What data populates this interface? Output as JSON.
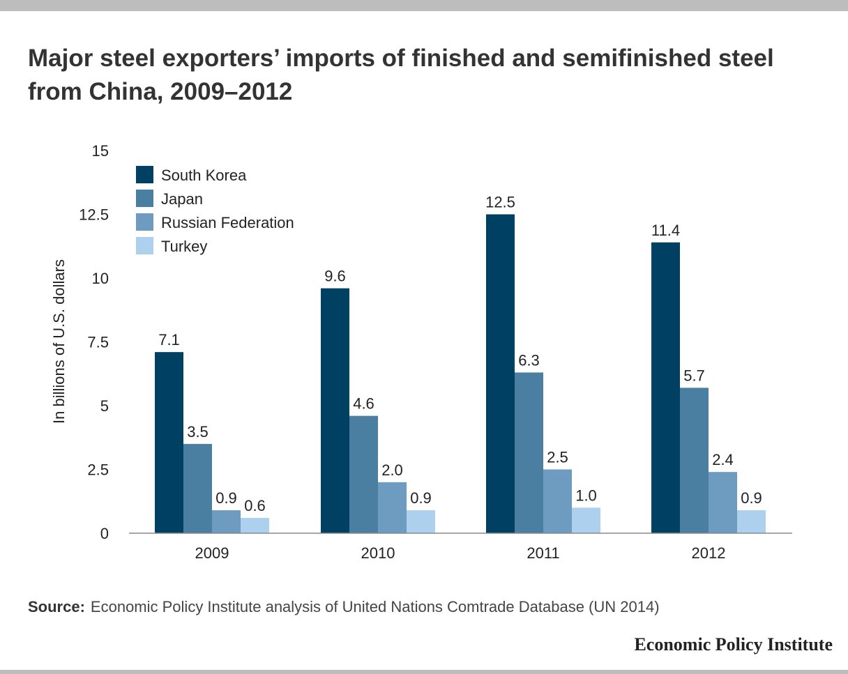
{
  "title": "Major steel exporters’ imports of finished and semifinished steel from China, 2009–2012",
  "source": {
    "label": "Source:",
    "text": "Economic Policy Institute analysis of United Nations Comtrade Database (UN 2014)"
  },
  "brand": "Economic Policy Institute",
  "colors": {
    "south_korea": "#004163",
    "japan": "#4a7fa1",
    "russian_federation": "#6d9cc0",
    "turkey": "#aed0ef",
    "axis": "#888888",
    "frame": "#bdbdbd"
  },
  "chart_data": {
    "type": "bar",
    "title": "Major steel exporters’ imports of finished and semifinished steel from China, 2009–2012",
    "xlabel": "",
    "ylabel": "In billions of U.S. dollars",
    "ylim": [
      0,
      15
    ],
    "yticks": [
      "0",
      "2.5",
      "5",
      "7.5",
      "10",
      "12.5",
      "15"
    ],
    "categories": [
      "2009",
      "2010",
      "2011",
      "2012"
    ],
    "legend_position": "top-left",
    "grid": false,
    "series": [
      {
        "name": "South Korea",
        "color": "#004163",
        "values": [
          7.1,
          9.6,
          12.5,
          11.4
        ],
        "labels": [
          "7.1",
          "9.6",
          "12.5",
          "11.4"
        ]
      },
      {
        "name": "Japan",
        "color": "#4a7fa1",
        "values": [
          3.5,
          4.6,
          6.3,
          5.7
        ],
        "labels": [
          "3.5",
          "4.6",
          "6.3",
          "5.7"
        ]
      },
      {
        "name": "Russian Federation",
        "color": "#6d9cc0",
        "values": [
          0.9,
          2.0,
          2.5,
          2.4
        ],
        "labels": [
          "0.9",
          "2.0",
          "2.5",
          "2.4"
        ]
      },
      {
        "name": "Turkey",
        "color": "#aed0ef",
        "values": [
          0.6,
          0.9,
          1.0,
          0.9
        ],
        "labels": [
          "0.6",
          "0.9",
          "1.0",
          "0.9"
        ]
      }
    ]
  }
}
